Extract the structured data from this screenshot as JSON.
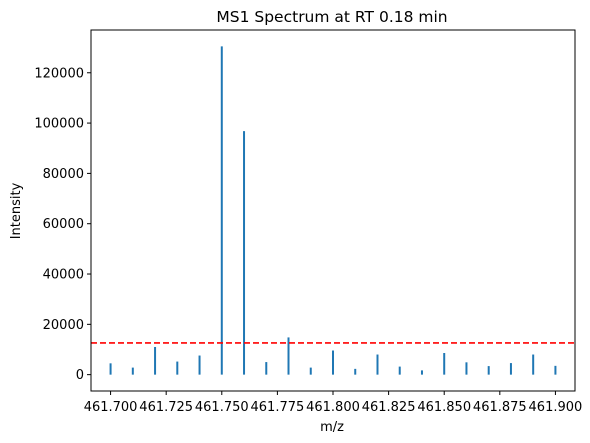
{
  "chart_data": {
    "type": "stem",
    "title": "MS1 Spectrum at RT 0.18 min",
    "xlabel": "m/z",
    "ylabel": "Intensity",
    "xlim": [
      461.6912,
      461.9088
    ],
    "ylim": [
      -6500,
      137000
    ],
    "x_ticks": [
      461.7,
      461.725,
      461.75,
      461.775,
      461.8,
      461.825,
      461.85,
      461.875,
      461.9
    ],
    "x_tick_labels": [
      "461.700",
      "461.725",
      "461.750",
      "461.775",
      "461.800",
      "461.825",
      "461.850",
      "461.875",
      "461.900"
    ],
    "y_ticks": [
      0,
      20000,
      40000,
      60000,
      80000,
      100000,
      120000
    ],
    "y_tick_labels": [
      "0",
      "20000",
      "40000",
      "60000",
      "80000",
      "100000",
      "120000"
    ],
    "series_color": "#1f77b4",
    "threshold": {
      "value": 12600,
      "color": "#ff0000",
      "style": "dashed"
    },
    "x": [
      461.7,
      461.71,
      461.72,
      461.73,
      461.74,
      461.75,
      461.76,
      461.77,
      461.78,
      461.79,
      461.8,
      461.81,
      461.82,
      461.83,
      461.84,
      461.85,
      461.86,
      461.87,
      461.88,
      461.89,
      461.9
    ],
    "y": [
      4500,
      2800,
      11000,
      5200,
      7600,
      130500,
      96800,
      5000,
      14800,
      2800,
      9600,
      2300,
      8000,
      3200,
      1700,
      8600,
      4900,
      3400,
      4600,
      8000,
      3500
    ]
  }
}
